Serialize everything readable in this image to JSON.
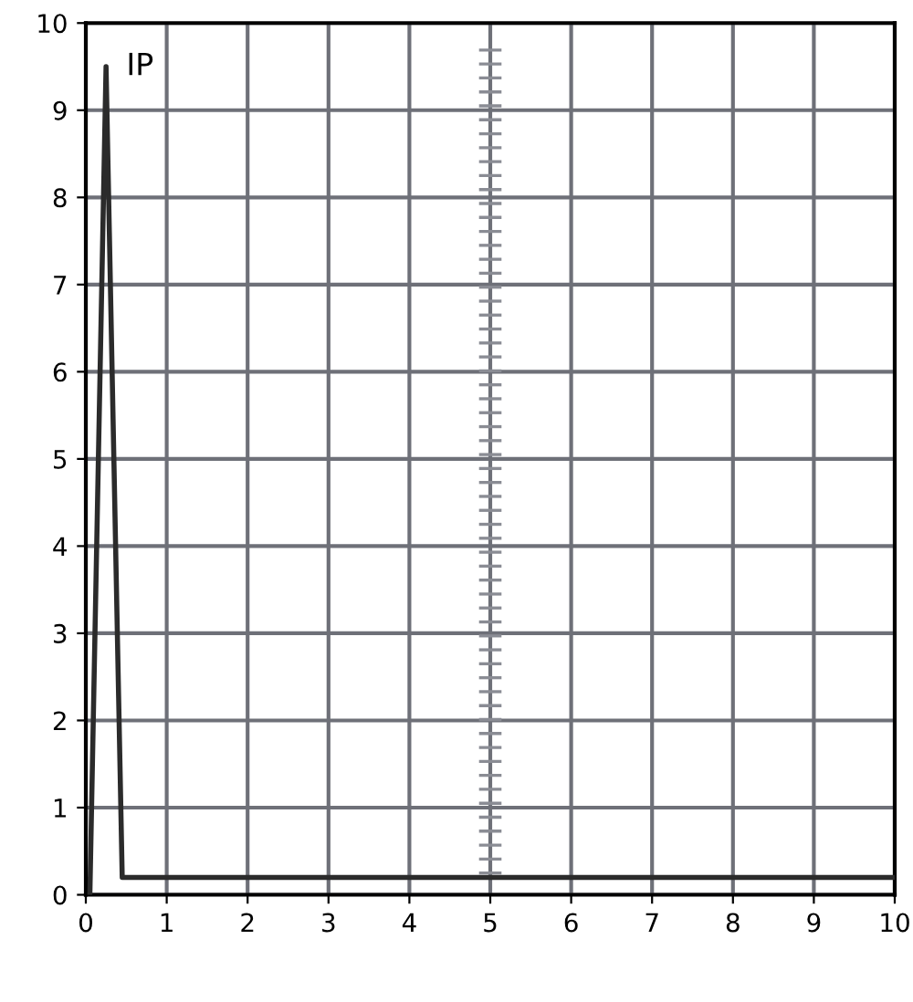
{
  "chart_data": {
    "type": "line",
    "x": [
      0.05,
      0.25,
      0.45,
      10
    ],
    "series": [
      {
        "color": "#2b2b2b",
        "values": [
          0,
          9.5,
          0.2,
          0.2
        ]
      }
    ],
    "annotations": [
      {
        "text": "IP",
        "x": 0.25,
        "y": 9.5
      }
    ],
    "xlim": [
      0,
      10
    ],
    "ylim": [
      0,
      10
    ],
    "xticks": [
      0,
      1,
      2,
      3,
      4,
      5,
      6,
      7,
      8,
      9,
      10
    ],
    "yticks": [
      0,
      1,
      2,
      3,
      4,
      5,
      6,
      7,
      8,
      9,
      10
    ],
    "grid": true,
    "marker": "none",
    "line_style": "solid"
  }
}
